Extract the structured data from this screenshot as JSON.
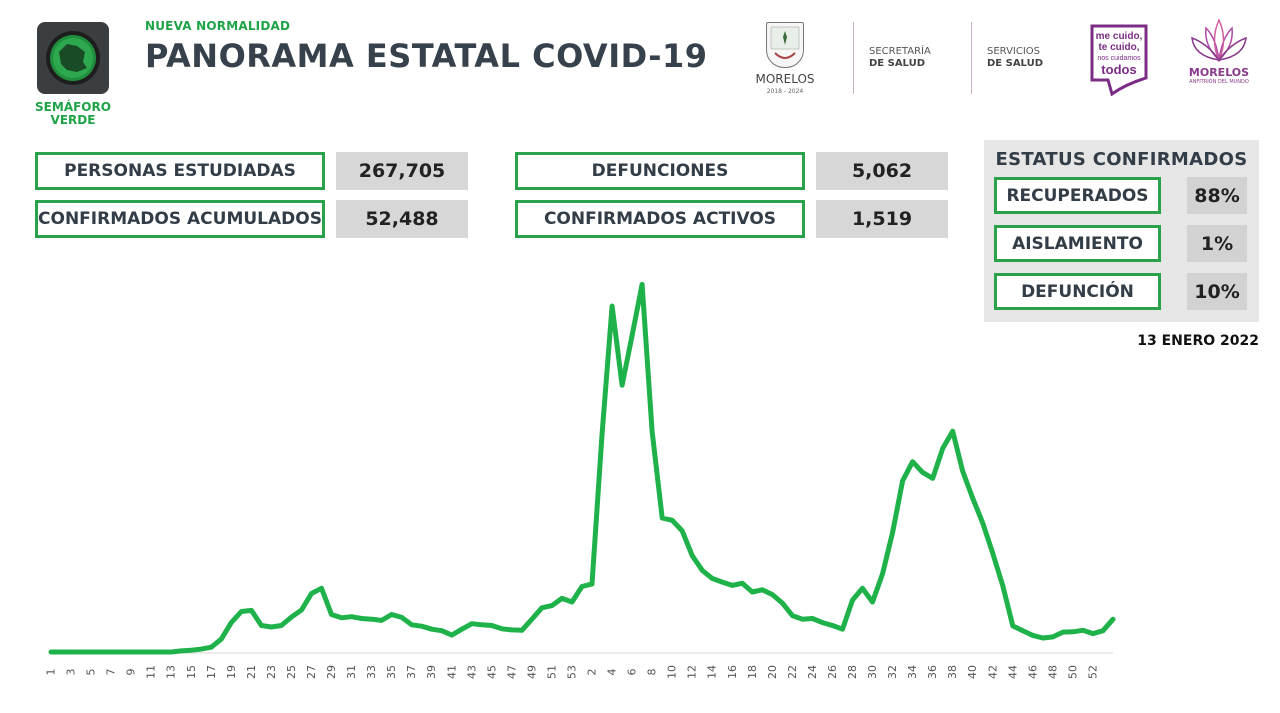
{
  "header": {
    "semaforo_label": "SEMÁFORO VERDE",
    "subtitle": "NUEVA NORMALIDAD",
    "title": "PANORAMA ESTATAL COVID-19",
    "logo_morelos": {
      "name": "MORELOS",
      "years": "2018 - 2024"
    },
    "secretaria": {
      "line1": "SECRETARÍA",
      "line2": "DE SALUD"
    },
    "servicios": {
      "line1": "SERVICIOS",
      "line2": "DE SALUD"
    },
    "campaign": {
      "line1": "me cuido,",
      "line2": "te cuido,",
      "line3": "nos cuidamos",
      "line4": "todos"
    },
    "logo_morelos2": {
      "name": "MORELOS",
      "tagline": "ANFITRIÓN DEL MUNDO"
    }
  },
  "stats": {
    "personas_estudiadas": {
      "label": "PERSONAS ESTUDIADAS",
      "value": "267,705"
    },
    "confirmados_acumulados": {
      "label": "CONFIRMADOS ACUMULADOS",
      "value": "52,488"
    },
    "defunciones": {
      "label": "DEFUNCIONES",
      "value": "5,062"
    },
    "confirmados_activos": {
      "label": "CONFIRMADOS ACTIVOS",
      "value": "1,519"
    }
  },
  "status": {
    "title": "ESTATUS CONFIRMADOS",
    "items": [
      {
        "label": "RECUPERADOS",
        "value": "88%"
      },
      {
        "label": "AISLAMIENTO",
        "value": "1%"
      },
      {
        "label": "DEFUNCIÓN",
        "value": "10%"
      }
    ]
  },
  "date": "13 ENERO 2022",
  "colors": {
    "line": "#1fb24a",
    "box_border": "#2aa24b",
    "value_bg": "#d7d7d7",
    "title": "#36414b"
  },
  "chart_data": {
    "type": "line",
    "title": "",
    "xlabel": "",
    "ylabel": "",
    "x_tick_labels": [
      "1",
      "3",
      "5",
      "7",
      "9",
      "11",
      "13",
      "15",
      "17",
      "19",
      "21",
      "23",
      "25",
      "27",
      "29",
      "31",
      "33",
      "35",
      "37",
      "39",
      "41",
      "43",
      "45",
      "47",
      "49",
      "51",
      "53",
      "2",
      "4",
      "6",
      "8",
      "10",
      "12",
      "14",
      "16",
      "18",
      "20",
      "22",
      "24",
      "26",
      "28",
      "30",
      "32",
      "34",
      "36",
      "38",
      "40",
      "42",
      "44",
      "46",
      "48",
      "50",
      "52"
    ],
    "ylim": [
      0,
      100
    ],
    "grid": false,
    "series": [
      {
        "values": [
          0,
          0,
          0,
          0,
          0,
          0,
          0,
          0,
          0,
          0,
          0,
          0,
          0,
          0.3,
          0.5,
          0.8,
          1.3,
          3.5,
          8,
          11,
          11.3,
          7.2,
          6.8,
          7.2,
          9.5,
          11.4,
          15.9,
          17.3,
          10.2,
          9.3,
          9.6,
          9.1,
          8.9,
          8.6,
          10.2,
          9.4,
          7.4,
          7,
          6.2,
          5.8,
          4.6,
          6.2,
          7.7,
          7.4,
          7.2,
          6.3,
          6,
          5.9,
          8.9,
          12,
          12.6,
          14.6,
          13.6,
          17.8,
          18.5,
          59,
          94,
          72.5,
          86,
          99.9,
          60,
          36.4,
          35.8,
          32.9,
          26.2,
          22.2,
          20,
          19,
          18.1,
          18.7,
          16.3,
          16.9,
          15.6,
          13.3,
          9.9,
          8.9,
          9.1,
          8,
          7.2,
          6.2,
          14.1,
          17.3,
          13.6,
          21.3,
          32.5,
          46.5,
          51.7,
          48.8,
          47.2,
          55.3,
          60,
          49.1,
          41.8,
          35,
          26.8,
          18,
          7.1,
          5.8,
          4.5,
          3.8,
          4.1,
          5.4,
          5.5,
          5.9,
          5,
          5.8,
          8.9
        ]
      }
    ]
  }
}
